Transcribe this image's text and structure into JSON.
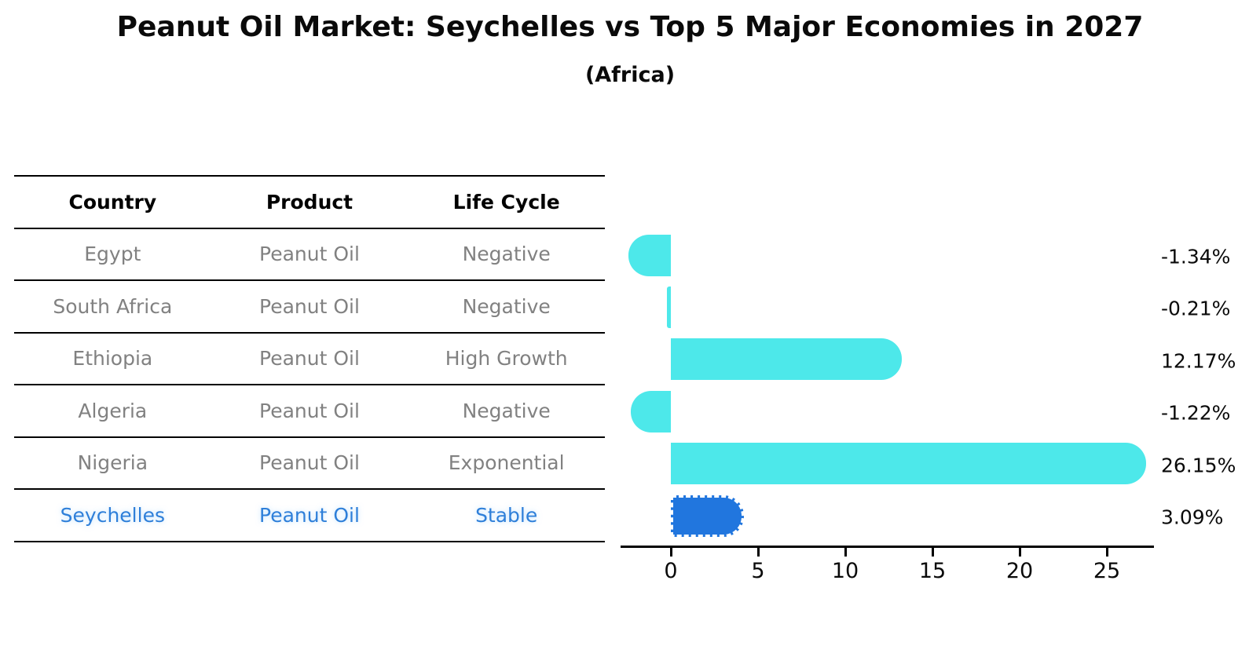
{
  "title": "Peanut Oil Market: Seychelles vs Top 5 Major Economies in 2027",
  "subtitle": "(Africa)",
  "table": {
    "headers": [
      "Country",
      "Product",
      "Life Cycle"
    ],
    "rows": [
      {
        "country": "Egypt",
        "product": "Peanut Oil",
        "life_cycle": "Negative",
        "highlight": false
      },
      {
        "country": "South Africa",
        "product": "Peanut Oil",
        "life_cycle": "Negative",
        "highlight": false
      },
      {
        "country": "Ethiopia",
        "product": "Peanut Oil",
        "life_cycle": "High Growth",
        "highlight": false
      },
      {
        "country": "Algeria",
        "product": "Peanut Oil",
        "life_cycle": "Negative",
        "highlight": false
      },
      {
        "country": "Nigeria",
        "product": "Peanut Oil",
        "life_cycle": "Exponential",
        "highlight": false
      },
      {
        "country": "Seychelles",
        "product": "Peanut Oil",
        "life_cycle": "Stable",
        "highlight": true
      }
    ]
  },
  "chart_data": {
    "type": "bar",
    "orientation": "horizontal",
    "title": "Peanut Oil Market: Seychelles vs Top 5 Major Economies in 2027 (Africa)",
    "categories": [
      "Egypt",
      "South Africa",
      "Ethiopia",
      "Algeria",
      "Nigeria",
      "Seychelles"
    ],
    "values": [
      -1.34,
      -0.21,
      12.17,
      -1.22,
      26.15,
      3.09
    ],
    "value_labels": [
      "-1.34%",
      "-0.21%",
      "12.17%",
      "-1.22%",
      "26.15%",
      "3.09%"
    ],
    "xticks": [
      0,
      5,
      10,
      15,
      20,
      25
    ],
    "xlim": [
      -2.9,
      27.7
    ],
    "grid": false,
    "legend": false,
    "highlight_index": 5,
    "bar_color_default": "#4DE8EA",
    "bar_color_highlight": "#2176DE"
  },
  "colors": {
    "row_text": "#818181",
    "highlight_text": "#2e7fd9",
    "axis": "#000000",
    "background": "#ffffff"
  }
}
